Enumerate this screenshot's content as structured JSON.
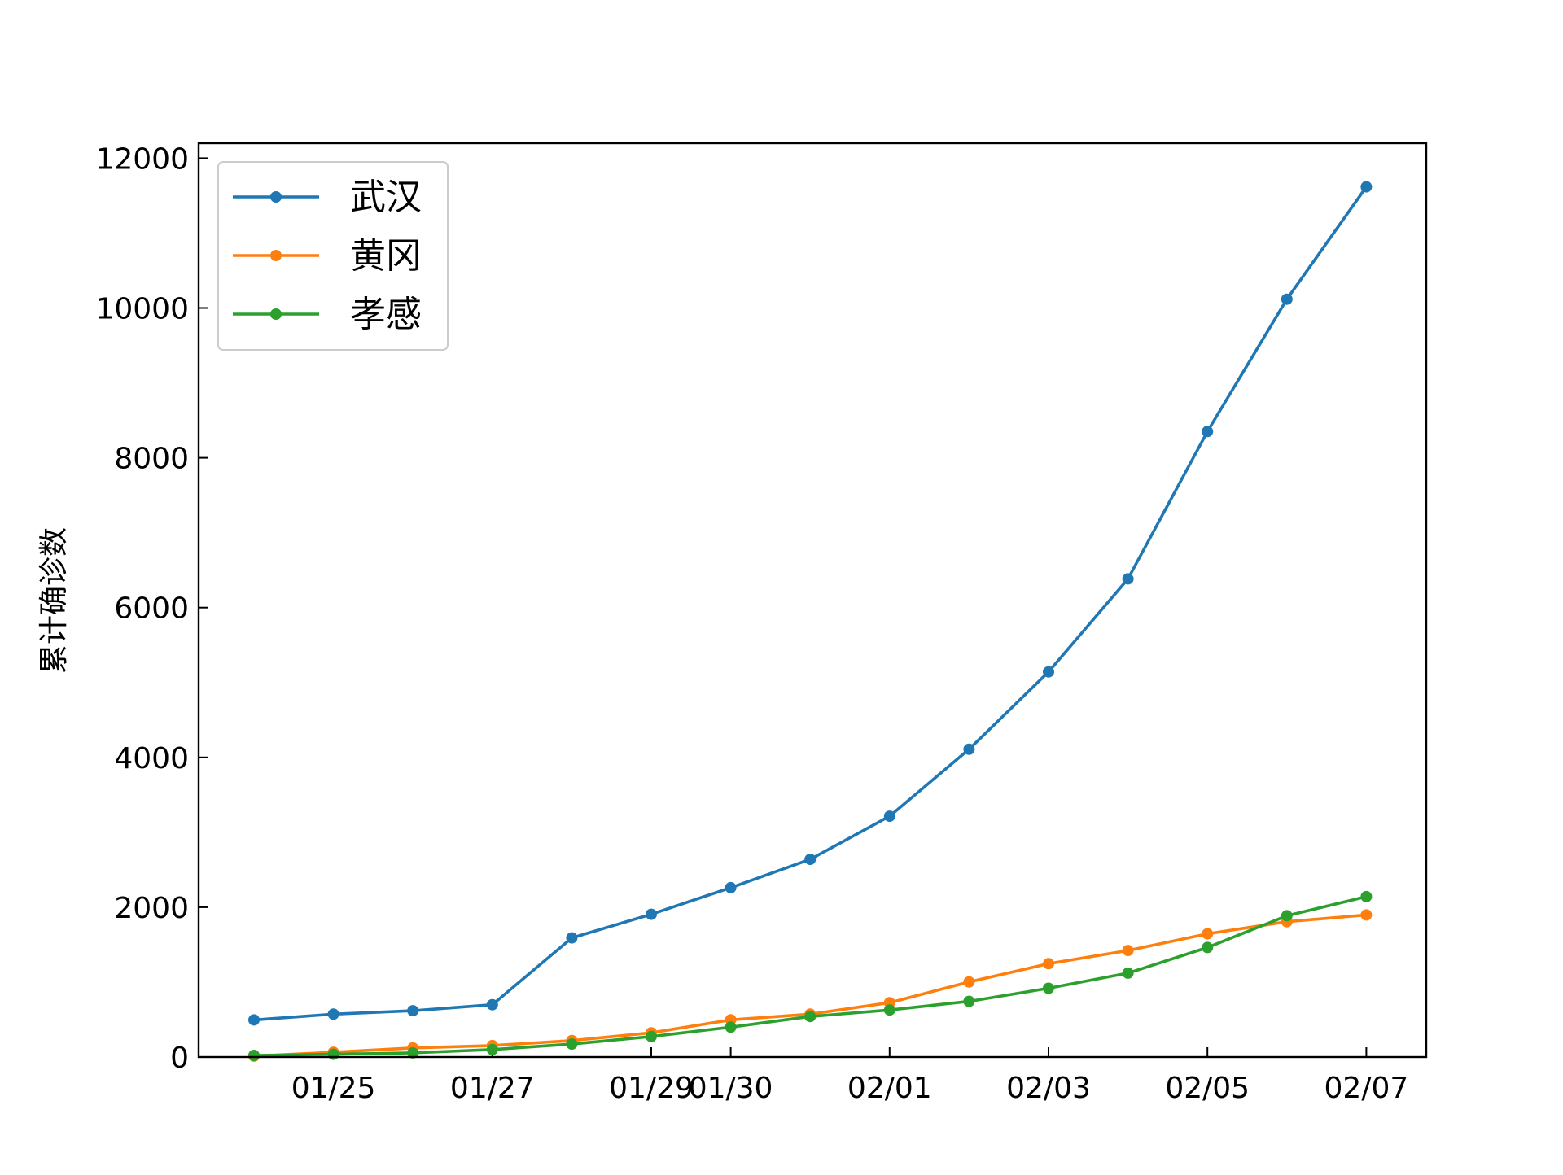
{
  "chart_data": {
    "type": "line",
    "title": "",
    "xlabel": "",
    "ylabel": "累计确诊数",
    "x": [
      "01/24",
      "01/25",
      "01/26",
      "01/27",
      "01/28",
      "01/29",
      "01/30",
      "01/31",
      "02/01",
      "02/02",
      "02/03",
      "02/04",
      "02/05",
      "02/06",
      "02/07"
    ],
    "x_tick_labels": [
      "01/25",
      "01/27",
      "01/29",
      "01/30",
      "02/01",
      "02/03",
      "02/05",
      "02/07"
    ],
    "y_ticks": [
      0,
      2000,
      4000,
      6000,
      8000,
      10000,
      12000
    ],
    "ylim": [
      0,
      12200
    ],
    "grid": false,
    "legend_position": "top-left",
    "series": [
      {
        "name": "武汉",
        "color": "#1f77b4",
        "values": [
          495,
          572,
          618,
          698,
          1590,
          1905,
          2261,
          2639,
          3215,
          4109,
          5142,
          6384,
          8351,
          10117,
          11618
        ]
      },
      {
        "name": "黄冈",
        "color": "#ff7f0e",
        "values": [
          12,
          64,
          122,
          153,
          219,
          324,
          496,
          573,
          726,
          1002,
          1246,
          1422,
          1645,
          1807,
          1897
        ]
      },
      {
        "name": "孝感",
        "color": "#2ca02c",
        "values": [
          22,
          37,
          55,
          100,
          173,
          274,
          399,
          541,
          628,
          743,
          918,
          1120,
          1462,
          1886,
          2141
        ]
      }
    ]
  }
}
